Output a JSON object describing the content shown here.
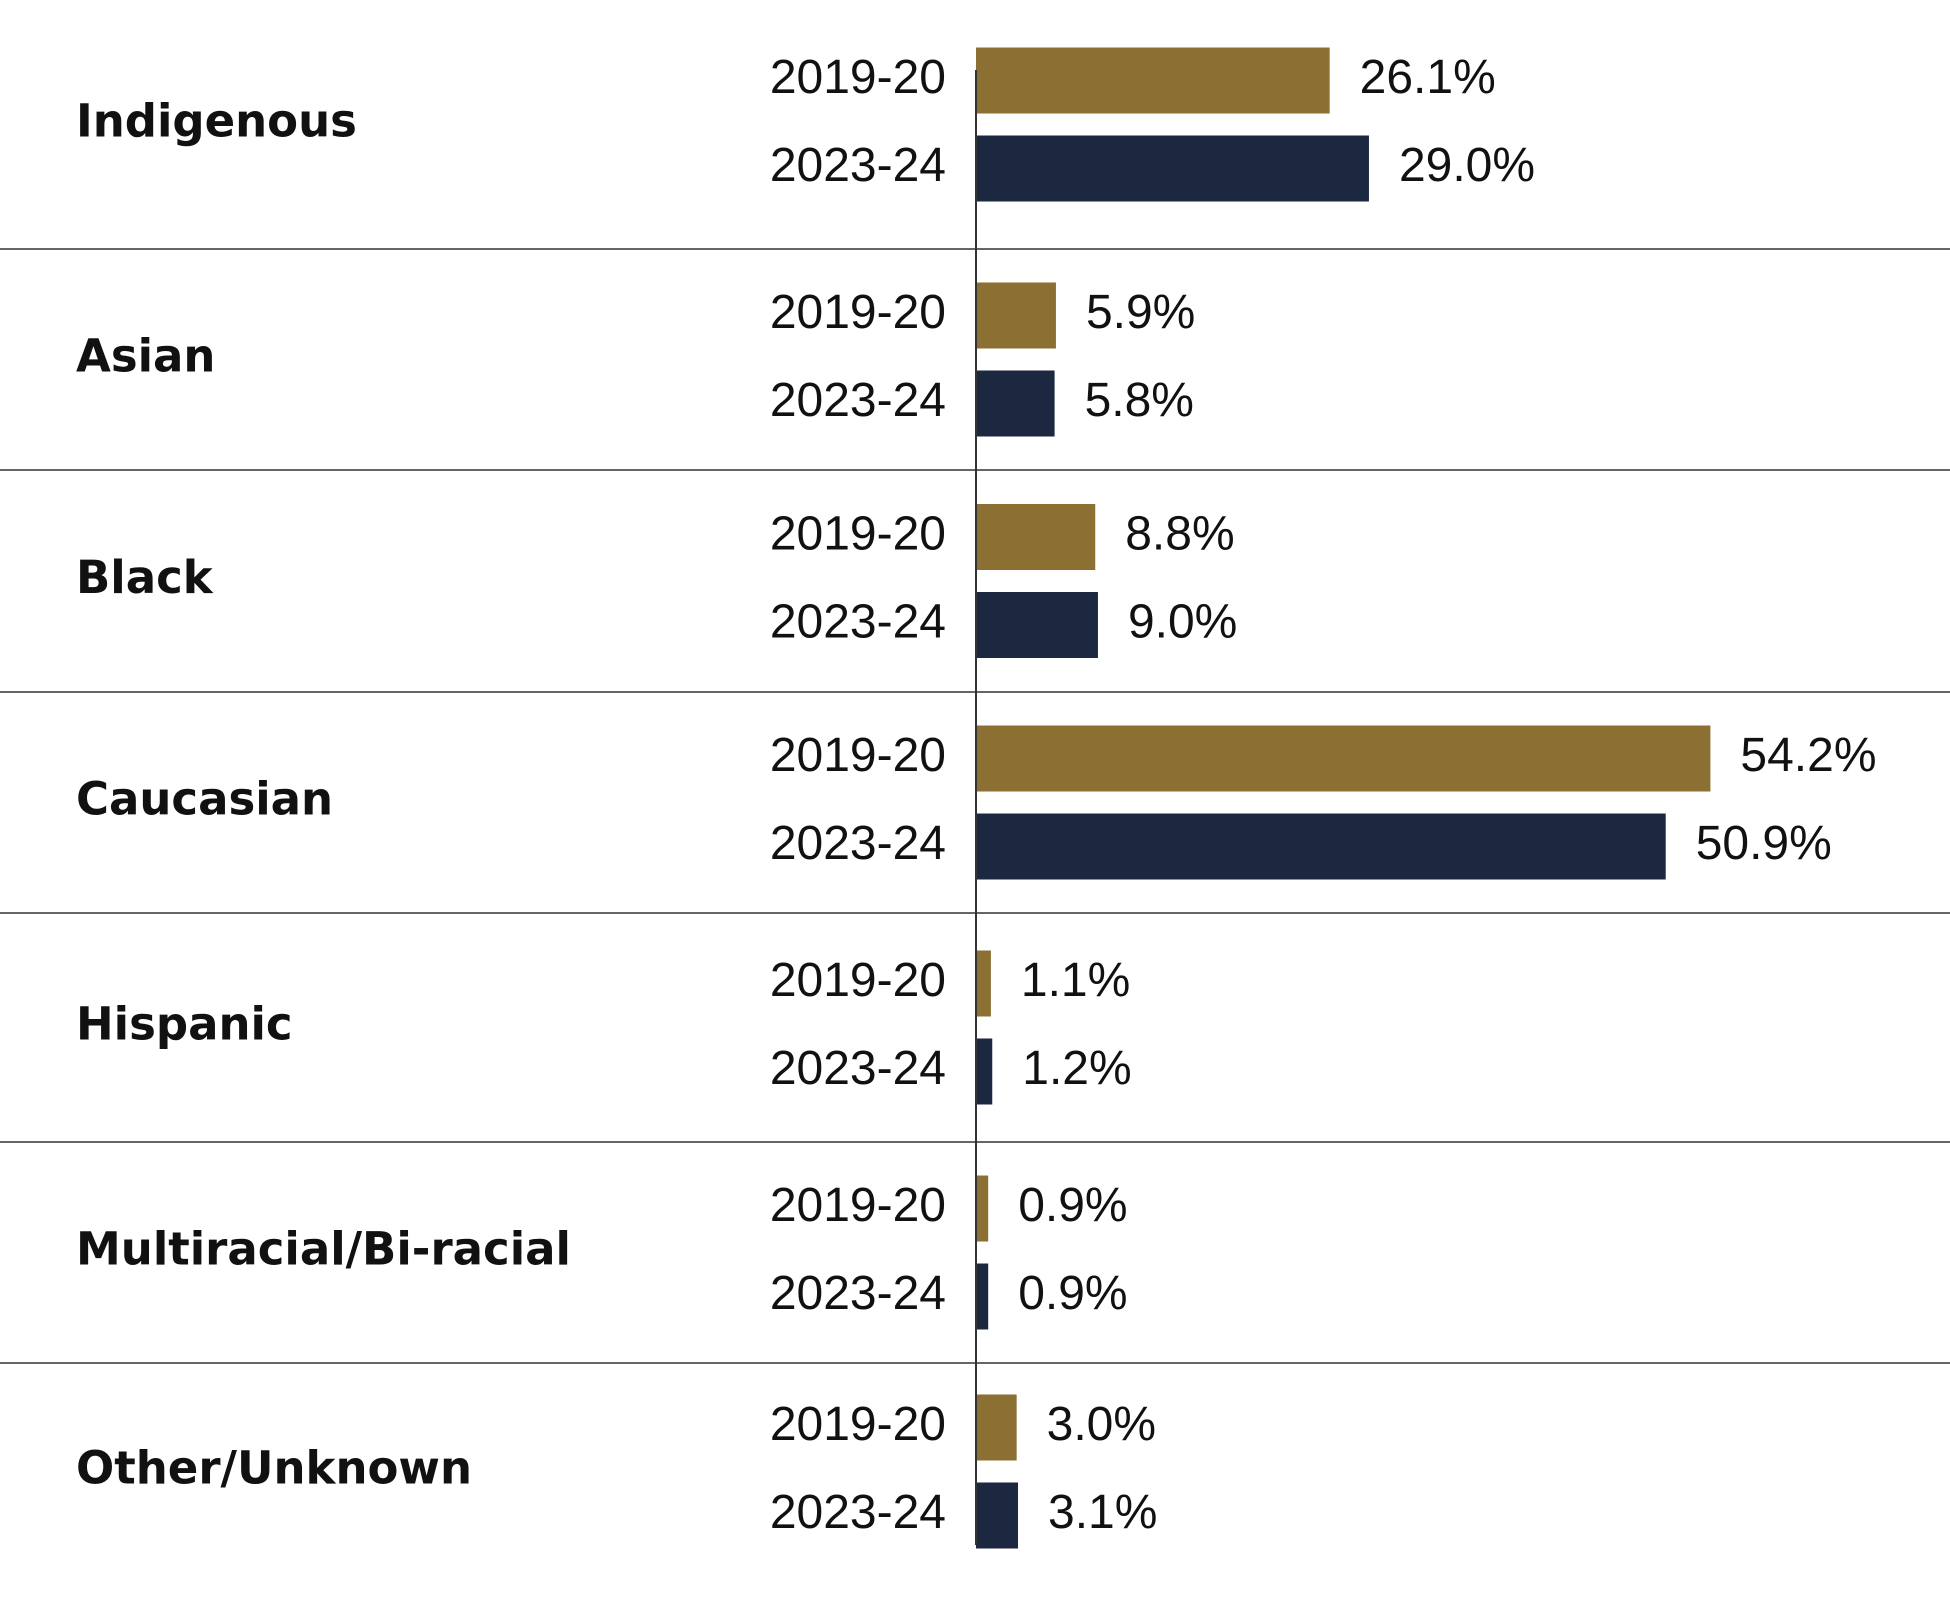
{
  "chart_data": {
    "type": "bar",
    "orientation": "horizontal",
    "categories": [
      "Indigenous",
      "Asian",
      "Black",
      "Caucasian",
      "Hispanic",
      "Multiracial/Bi-racial",
      "Other/Unknown"
    ],
    "series": [
      {
        "name": "2019-20",
        "color": "#8B6F33",
        "values": [
          26.1,
          5.9,
          8.8,
          54.2,
          1.1,
          0.9,
          3.0
        ],
        "labels": [
          "26.1%",
          "5.9%",
          "8.8%",
          "54.2%",
          "1.1%",
          "0.9%",
          "3.0%"
        ]
      },
      {
        "name": "2023-24",
        "color": "#1B2840",
        "values": [
          29.0,
          5.8,
          9.0,
          50.9,
          1.2,
          0.9,
          3.1
        ],
        "labels": [
          "29.0%",
          "5.8%",
          "9.0%",
          "50.9%",
          "1.2%",
          "0.9%",
          "3.1%"
        ]
      }
    ],
    "xlim": [
      0,
      60
    ],
    "grid": false,
    "legend": "none"
  }
}
